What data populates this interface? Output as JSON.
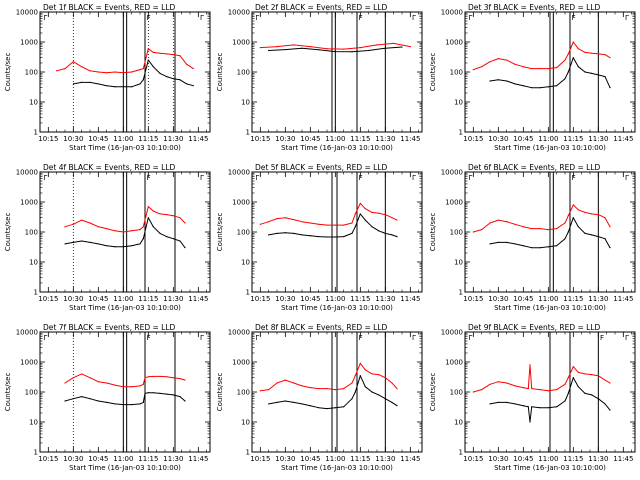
{
  "figure": {
    "time_ticks": [
      "10:15",
      "10:30",
      "10:45",
      "11:00",
      "11:15",
      "11:30",
      "11:45"
    ],
    "time_tick_minutes": [
      615,
      630,
      645,
      660,
      675,
      690,
      705
    ],
    "y_ticks": [
      "1",
      "10",
      "100",
      "1000",
      "10000"
    ],
    "xlabel": "Start Time (16-Jan-03 10:10:00)",
    "ylabel": "Counts/sec",
    "series_colors": {
      "events": "#000000",
      "lld": "#ff0000"
    }
  },
  "chart_data": [
    {
      "type": "line",
      "title": "Det 1f BLACK = Events, RED = LLD",
      "x_range_minutes": [
        610,
        712
      ],
      "ylim": [
        1,
        10000
      ],
      "yscale": "log",
      "dotted_lines_minutes": [
        630,
        675,
        690
      ],
      "vlines_minutes": [
        660,
        662,
        673,
        691
      ],
      "markers": [
        "Γ",
        "F",
        "Γ"
      ],
      "series": [
        {
          "name": "LLD",
          "x": [
            620,
            625,
            630,
            635,
            640,
            645,
            650,
            655,
            660,
            665,
            670,
            672,
            675,
            678,
            682,
            686,
            690,
            694,
            698,
            702
          ],
          "values": [
            110,
            130,
            220,
            150,
            110,
            100,
            95,
            100,
            95,
            100,
            120,
            130,
            600,
            450,
            420,
            400,
            380,
            350,
            180,
            130
          ]
        },
        {
          "name": "Events",
          "x": [
            630,
            635,
            640,
            645,
            650,
            655,
            660,
            665,
            670,
            672,
            675,
            678,
            682,
            686,
            690,
            694,
            698,
            702
          ],
          "values": [
            40,
            45,
            45,
            40,
            35,
            32,
            32,
            32,
            40,
            55,
            250,
            150,
            90,
            70,
            60,
            55,
            40,
            35
          ]
        }
      ]
    },
    {
      "type": "line",
      "title": "Det 2f BLACK = Events, RED = LLD",
      "x_range_minutes": [
        610,
        712
      ],
      "ylim": [
        1,
        10000
      ],
      "yscale": "log",
      "dotted_lines_minutes": [],
      "vlines_minutes": [
        658,
        660,
        673,
        690
      ],
      "markers": [
        "Γ",
        "F",
        "Γ"
      ],
      "series": [
        {
          "name": "LLD",
          "x": [
            615,
            625,
            635,
            645,
            655,
            665,
            675,
            685,
            695,
            705
          ],
          "values": [
            650,
            700,
            800,
            700,
            600,
            580,
            650,
            800,
            900,
            700
          ]
        },
        {
          "name": "Events",
          "x": [
            620,
            630,
            640,
            650,
            660,
            670,
            680,
            690,
            700
          ],
          "values": [
            520,
            560,
            620,
            550,
            480,
            470,
            520,
            620,
            680
          ]
        }
      ]
    },
    {
      "type": "line",
      "title": "Det 3f BLACK = Events, RED = LLD",
      "x_range_minutes": [
        610,
        712
      ],
      "ylim": [
        1,
        10000
      ],
      "yscale": "log",
      "dotted_lines_minutes": [],
      "vlines_minutes": [
        661,
        663,
        673,
        690
      ],
      "markers": [
        "Γ",
        "F",
        "Γ"
      ],
      "series": [
        {
          "name": "LLD",
          "x": [
            615,
            620,
            625,
            630,
            635,
            640,
            645,
            650,
            655,
            660,
            665,
            670,
            672,
            675,
            678,
            682,
            686,
            690,
            694,
            697
          ],
          "values": [
            120,
            150,
            220,
            280,
            250,
            180,
            150,
            130,
            130,
            130,
            140,
            250,
            400,
            1000,
            600,
            450,
            420,
            400,
            380,
            300
          ]
        },
        {
          "name": "Events",
          "x": [
            625,
            630,
            635,
            640,
            645,
            650,
            655,
            660,
            665,
            670,
            672,
            675,
            678,
            682,
            686,
            690,
            694,
            697
          ],
          "values": [
            50,
            55,
            50,
            40,
            35,
            30,
            30,
            32,
            35,
            60,
            100,
            300,
            150,
            100,
            90,
            80,
            70,
            30
          ]
        }
      ]
    },
    {
      "type": "line",
      "title": "Det 4f BLACK = Events, RED = LLD",
      "x_range_minutes": [
        610,
        712
      ],
      "ylim": [
        1,
        10000
      ],
      "yscale": "log",
      "dotted_lines_minutes": [
        630
      ],
      "vlines_minutes": [
        660,
        662,
        673,
        691
      ],
      "markers": [
        "Γ",
        "F",
        "Γ"
      ],
      "series": [
        {
          "name": "LLD",
          "x": [
            625,
            630,
            635,
            640,
            645,
            650,
            655,
            660,
            665,
            670,
            672,
            675,
            678,
            682,
            686,
            690,
            694,
            697
          ],
          "values": [
            150,
            180,
            250,
            200,
            150,
            130,
            110,
            100,
            110,
            120,
            150,
            700,
            500,
            400,
            380,
            350,
            300,
            200
          ]
        },
        {
          "name": "Events",
          "x": [
            625,
            630,
            635,
            640,
            645,
            650,
            655,
            660,
            665,
            670,
            672,
            675,
            678,
            682,
            686,
            690,
            694,
            697
          ],
          "values": [
            40,
            45,
            50,
            45,
            40,
            35,
            32,
            32,
            35,
            40,
            60,
            300,
            150,
            90,
            70,
            60,
            50,
            30
          ]
        }
      ]
    },
    {
      "type": "line",
      "title": "Det 5f BLACK = Events, RED = LLD",
      "x_range_minutes": [
        610,
        712
      ],
      "ylim": [
        1,
        10000
      ],
      "yscale": "log",
      "dotted_lines_minutes": [],
      "vlines_minutes": [
        658,
        661,
        673,
        690
      ],
      "markers": [
        "Γ",
        "F",
        "Γ"
      ],
      "series": [
        {
          "name": "LLD",
          "x": [
            615,
            620,
            625,
            630,
            635,
            640,
            645,
            650,
            655,
            660,
            665,
            670,
            672,
            675,
            678,
            682,
            686,
            690,
            694,
            697
          ],
          "values": [
            180,
            220,
            280,
            300,
            260,
            220,
            200,
            180,
            170,
            170,
            170,
            200,
            400,
            900,
            600,
            450,
            420,
            380,
            300,
            250
          ]
        },
        {
          "name": "Events",
          "x": [
            620,
            625,
            630,
            635,
            640,
            645,
            650,
            655,
            660,
            665,
            670,
            672,
            675,
            678,
            682,
            686,
            690,
            694,
            697
          ],
          "values": [
            80,
            90,
            95,
            90,
            80,
            75,
            70,
            68,
            68,
            70,
            90,
            150,
            400,
            250,
            150,
            110,
            90,
            80,
            70
          ]
        }
      ]
    },
    {
      "type": "line",
      "title": "Det 6f BLACK = Events, RED = LLD",
      "x_range_minutes": [
        610,
        712
      ],
      "ylim": [
        1,
        10000
      ],
      "yscale": "log",
      "dotted_lines_minutes": [],
      "vlines_minutes": [
        661,
        663,
        673,
        690
      ],
      "markers": [
        "Γ",
        "F",
        "Γ"
      ],
      "series": [
        {
          "name": "LLD",
          "x": [
            615,
            620,
            625,
            630,
            635,
            640,
            645,
            650,
            655,
            660,
            665,
            670,
            672,
            675,
            678,
            682,
            686,
            690,
            694,
            697
          ],
          "values": [
            100,
            120,
            200,
            250,
            220,
            180,
            150,
            130,
            130,
            120,
            130,
            200,
            350,
            800,
            550,
            450,
            400,
            380,
            300,
            150
          ]
        },
        {
          "name": "Events",
          "x": [
            625,
            630,
            635,
            640,
            645,
            650,
            655,
            660,
            665,
            670,
            672,
            675,
            678,
            682,
            686,
            690,
            694,
            697
          ],
          "values": [
            40,
            45,
            45,
            40,
            35,
            30,
            30,
            32,
            35,
            60,
            100,
            300,
            150,
            90,
            80,
            70,
            60,
            30
          ]
        }
      ]
    },
    {
      "type": "line",
      "title": "Det 7f BLACK = Events, RED = LLD",
      "x_range_minutes": [
        610,
        712
      ],
      "ylim": [
        1,
        10000
      ],
      "yscale": "log",
      "dotted_lines_minutes": [
        630
      ],
      "vlines_minutes": [
        660,
        662,
        673,
        691
      ],
      "markers": [
        "Γ",
        "F",
        "Γ"
      ],
      "series": [
        {
          "name": "LLD",
          "x": [
            625,
            630,
            635,
            640,
            645,
            650,
            655,
            660,
            665,
            670,
            672,
            673,
            675,
            678,
            682,
            686,
            690,
            694,
            697
          ],
          "values": [
            200,
            300,
            400,
            300,
            220,
            200,
            170,
            150,
            150,
            160,
            180,
            300,
            320,
            330,
            330,
            320,
            300,
            280,
            250
          ]
        },
        {
          "name": "Events",
          "x": [
            625,
            630,
            635,
            640,
            645,
            650,
            655,
            660,
            665,
            670,
            672,
            673,
            675,
            678,
            682,
            686,
            690,
            694,
            697
          ],
          "values": [
            50,
            60,
            70,
            60,
            50,
            45,
            40,
            38,
            38,
            40,
            45,
            90,
            95,
            95,
            90,
            85,
            80,
            70,
            50
          ]
        }
      ]
    },
    {
      "type": "line",
      "title": "Det 8f BLACK = Events, RED = LLD",
      "x_range_minutes": [
        610,
        712
      ],
      "ylim": [
        1,
        10000
      ],
      "yscale": "log",
      "dotted_lines_minutes": [],
      "vlines_minutes": [
        658,
        661,
        673,
        690
      ],
      "markers": [
        "Γ",
        "F",
        "Γ"
      ],
      "series": [
        {
          "name": "LLD",
          "x": [
            615,
            620,
            625,
            630,
            635,
            640,
            645,
            650,
            655,
            660,
            665,
            670,
            672,
            675,
            678,
            682,
            686,
            690,
            694,
            697
          ],
          "values": [
            110,
            120,
            200,
            250,
            200,
            160,
            140,
            130,
            130,
            120,
            130,
            200,
            350,
            900,
            550,
            400,
            380,
            300,
            200,
            130
          ]
        },
        {
          "name": "Events",
          "x": [
            620,
            625,
            630,
            635,
            640,
            645,
            650,
            655,
            660,
            665,
            670,
            672,
            675,
            678,
            682,
            686,
            690,
            694,
            697
          ],
          "values": [
            40,
            45,
            50,
            45,
            40,
            35,
            30,
            28,
            30,
            32,
            60,
            100,
            350,
            150,
            100,
            80,
            60,
            45,
            35
          ]
        }
      ]
    },
    {
      "type": "line",
      "title": "Det 9f BLACK = Events, RED = LLD",
      "x_range_minutes": [
        610,
        712
      ],
      "ylim": [
        1,
        10000
      ],
      "yscale": "log",
      "dotted_lines_minutes": [],
      "vlines_minutes": [
        661,
        673,
        690
      ],
      "markers": [
        "Γ",
        "F",
        "Γ"
      ],
      "series": [
        {
          "name": "LLD",
          "x": [
            615,
            620,
            625,
            630,
            635,
            640,
            645,
            648,
            649,
            650,
            655,
            660,
            665,
            670,
            672,
            675,
            678,
            682,
            686,
            690,
            694,
            697
          ],
          "values": [
            100,
            120,
            180,
            220,
            200,
            160,
            140,
            130,
            800,
            130,
            120,
            110,
            120,
            180,
            300,
            700,
            450,
            400,
            380,
            350,
            250,
            200
          ]
        },
        {
          "name": "Events",
          "x": [
            625,
            630,
            635,
            640,
            645,
            648,
            649,
            650,
            655,
            660,
            665,
            670,
            672,
            675,
            678,
            682,
            686,
            690,
            694,
            697
          ],
          "values": [
            40,
            45,
            45,
            40,
            35,
            32,
            10,
            32,
            30,
            30,
            32,
            50,
            90,
            300,
            150,
            90,
            80,
            60,
            40,
            25
          ]
        }
      ]
    }
  ]
}
